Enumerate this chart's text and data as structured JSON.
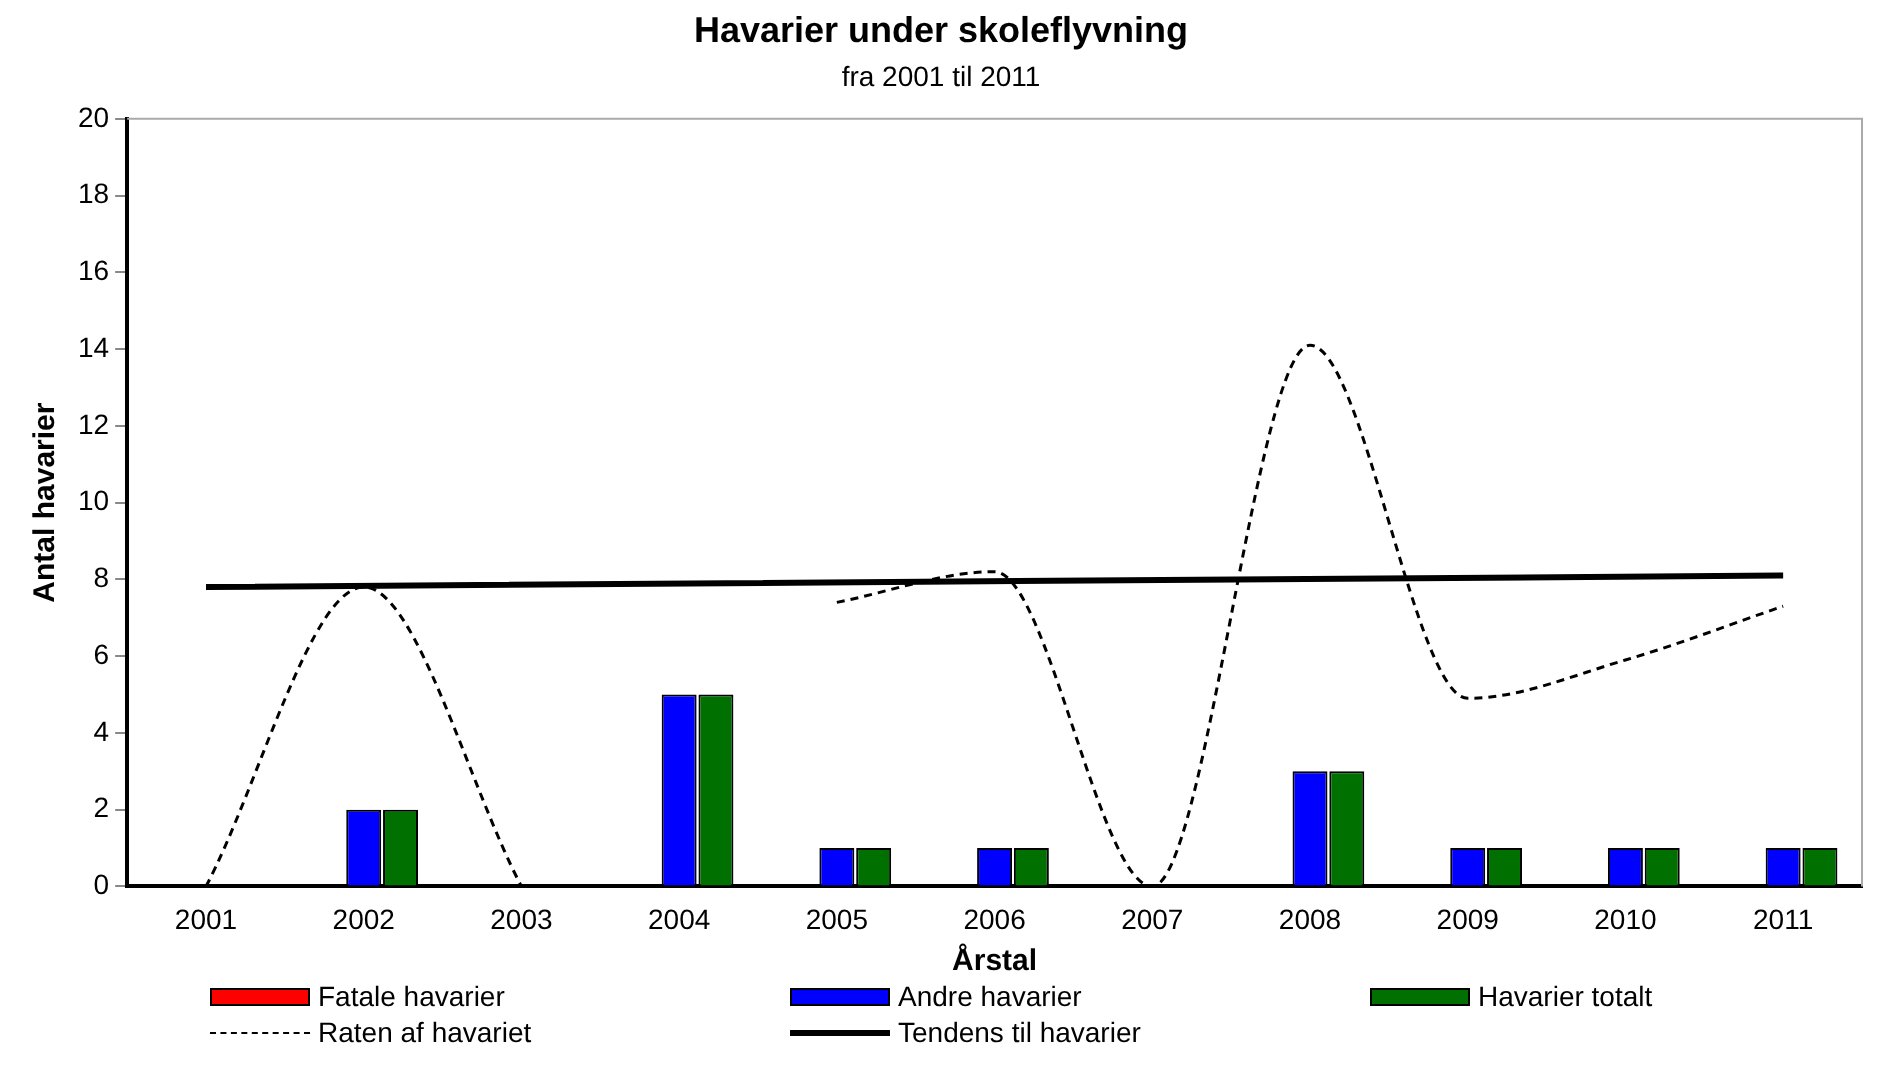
{
  "chart_data": {
    "type": "bar",
    "title": "Havarier under skoleflyvning",
    "subtitle": "fra 2001 til 2011",
    "xlabel": "Årstal",
    "ylabel": "Antal havarier",
    "categories": [
      "2001",
      "2002",
      "2003",
      "2004",
      "2005",
      "2006",
      "2007",
      "2008",
      "2009",
      "2010",
      "2011"
    ],
    "ylim": [
      0,
      20
    ],
    "yticks": [
      0,
      2,
      4,
      6,
      8,
      10,
      12,
      14,
      16,
      18,
      20
    ],
    "grid": false,
    "legend": "bottom",
    "marker": "none",
    "series": [
      {
        "name": "Fatale havarier",
        "color": "#ff0000",
        "values": [
          0,
          0,
          0,
          0,
          0,
          0,
          0,
          0,
          0,
          0,
          0
        ]
      },
      {
        "name": "Andre havarier",
        "color": "#0000ff",
        "values": [
          0,
          2,
          0,
          5,
          1,
          1,
          0,
          3,
          1,
          1,
          1
        ]
      },
      {
        "name": "Havarier totalt",
        "color": "#007000",
        "values": [
          0,
          2,
          0,
          5,
          1,
          1,
          0,
          3,
          1,
          1,
          1
        ]
      },
      {
        "name": "Raten af havariet",
        "type": "line",
        "line_style": "dashed",
        "color": "#000000",
        "values": [
          0,
          7.8,
          0,
          null,
          7.4,
          8.2,
          0,
          14.1,
          4.9,
          5.9,
          7.3
        ]
      },
      {
        "name": "Tendens til havarier",
        "type": "line",
        "line_style": "solid",
        "color": "#000000",
        "values": [
          7.8,
          null,
          null,
          null,
          null,
          null,
          null,
          null,
          null,
          null,
          8.1
        ]
      }
    ]
  }
}
